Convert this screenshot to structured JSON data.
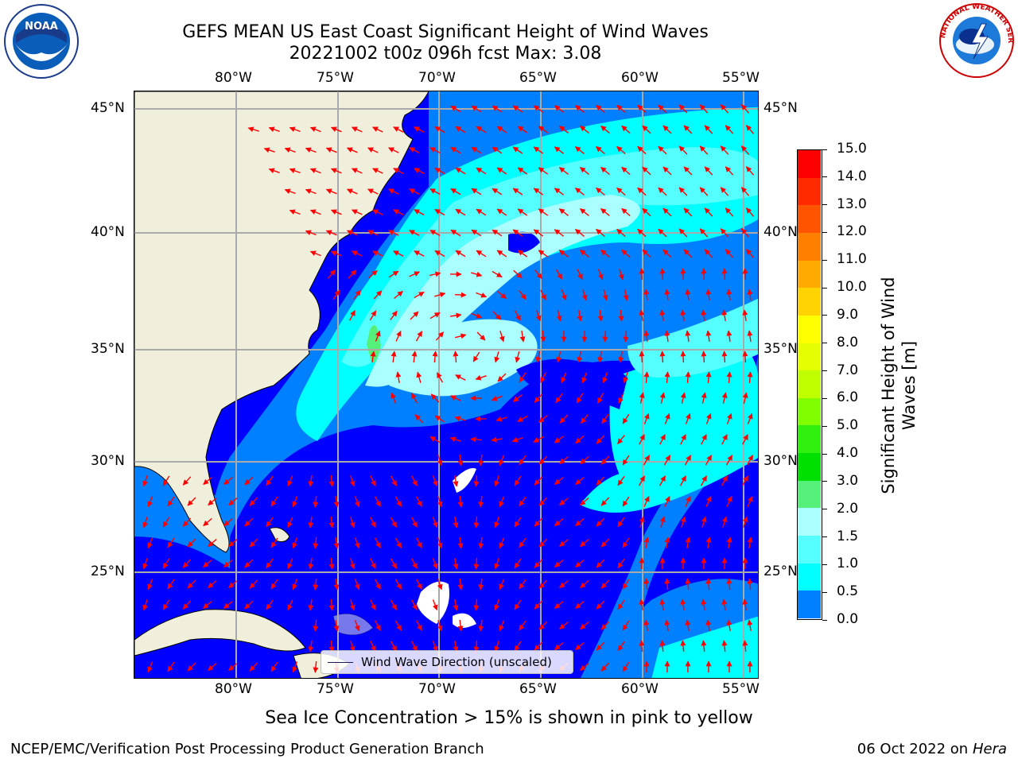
{
  "header": {
    "title_line1": "GEFS MEAN US East Coast Significant Height of Wind Waves",
    "title_line2": "20221002 t00z 096h fcst   Max: 3.08"
  },
  "logos": {
    "left": {
      "name": "noaa-logo",
      "text": "NOAA"
    },
    "right": {
      "name": "nws-logo",
      "text": "NATIONAL WEATHER SERVICE"
    }
  },
  "axes": {
    "lon_labels": [
      "80°W",
      "75°W",
      "70°W",
      "65°W",
      "60°W",
      "55°W"
    ],
    "lat_labels": [
      "45°N",
      "40°N",
      "35°N",
      "30°N",
      "25°N"
    ]
  },
  "colorbar": {
    "label_line1": "Significant Height of Wind",
    "label_line2": "Waves [m]",
    "ticks": [
      "15.0",
      "14.0",
      "13.0",
      "12.0",
      "11.0",
      "10.0",
      "9.0",
      "8.0",
      "7.0",
      "6.0",
      "5.0",
      "4.0",
      "3.0",
      "2.0",
      "1.5",
      "1.0",
      "0.5",
      "0.0"
    ],
    "colors": [
      "#ff0000",
      "#ff2a00",
      "#ff5500",
      "#ff8000",
      "#ffaa00",
      "#ffd200",
      "#ffff00",
      "#e6ff00",
      "#bfff00",
      "#80ff00",
      "#30f010",
      "#00e000",
      "#55f07a",
      "#aaffff",
      "#55ffff",
      "#00ffff",
      "#0080ff",
      "#0000ff"
    ]
  },
  "legend": {
    "label": "Wind Wave Direction (unscaled)"
  },
  "notes": {
    "sea_ice": "Sea Ice Concentration > 15% is shown in pink to yellow"
  },
  "footer": {
    "left": "NCEP/EMC/Verification Post Processing Product Generation Branch",
    "date": "06 Oct 2022 on ",
    "machine": "Hera"
  }
}
